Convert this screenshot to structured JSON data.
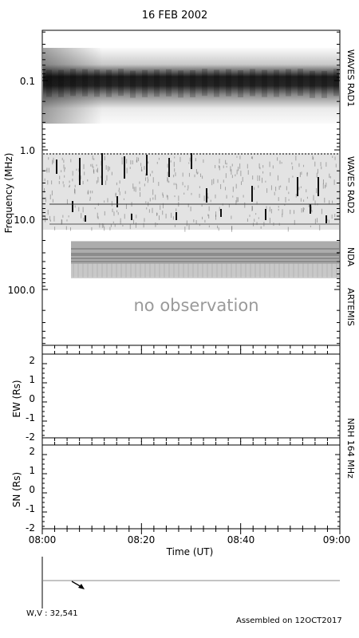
{
  "chart_data": {
    "type": "heatmap",
    "title": "16 FEB 2002",
    "ylabel_spectrum": "Frequency (MHz)",
    "ytick_labels": [
      "0.1",
      "1.0",
      "10.0",
      "100.0"
    ],
    "yscale": "log (inverted, increasing downward)",
    "xlabel": "Time (UT)",
    "xtick_labels": [
      "08:00",
      "08:20",
      "08:40",
      "09:00"
    ],
    "xlim": [
      "08:00",
      "09:00"
    ],
    "instruments": [
      "WAVES RAD1",
      "WAVES RAD2",
      "NDA",
      "ARTEMIS"
    ],
    "annotation": "no observation",
    "nrh_label": "NRH 164 MHz",
    "ew_panel": {
      "ylabel": "EW (Rs)",
      "yticks": [
        "2",
        "1",
        "0",
        "-1",
        "-2"
      ],
      "ylim": [
        -2,
        2
      ]
    },
    "sn_panel": {
      "ylabel": "SN (Rs)",
      "yticks": [
        "2",
        "1",
        "0",
        "-1",
        "-2"
      ],
      "ylim": [
        -2,
        2
      ]
    },
    "bands": [
      {
        "name": "WAVES RAD1",
        "freq_mhz": [
          0.02,
          1.1
        ],
        "note": "dark band near 0.1 MHz across full interval"
      },
      {
        "name": "WAVES RAD2",
        "freq_mhz": [
          1.1,
          13
        ],
        "note": "speckled background with short vertical streaks"
      },
      {
        "name": "NDA",
        "freq_mhz": [
          20,
          70
        ],
        "note": "horizontal striations, starts ~08:05"
      }
    ]
  },
  "footer": {
    "wv_label": "W,V : 32,541",
    "assembled": "Assembled on 12OCT2017"
  }
}
